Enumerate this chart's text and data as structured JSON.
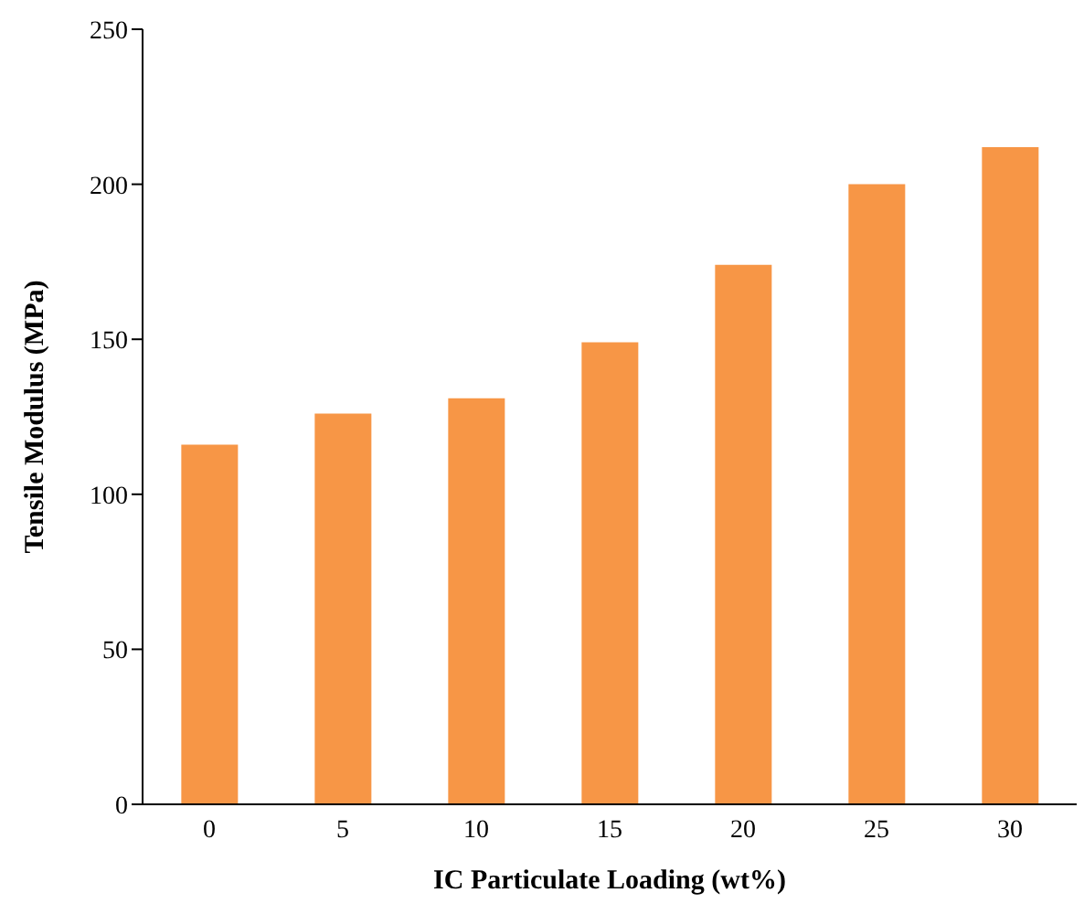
{
  "chart_data": {
    "type": "bar",
    "xlabel": "IC Particulate Loading (wt%)",
    "ylabel": "Tensile Modulus (MPa)",
    "categories": [
      "0",
      "5",
      "10",
      "15",
      "20",
      "25",
      "30"
    ],
    "values": [
      116,
      126,
      131,
      149,
      174,
      200,
      212
    ],
    "color": "#f79646",
    "ylim": [
      0,
      250
    ],
    "yticks": [
      0,
      50,
      100,
      150,
      200,
      250
    ],
    "grid": false,
    "legend": false
  }
}
